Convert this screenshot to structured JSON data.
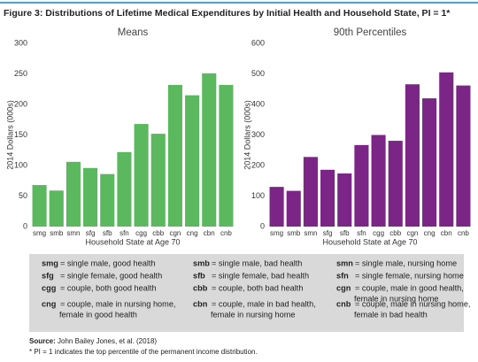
{
  "figure_title": "Figure 3: Distributions of Lifetime Medical Expenditures by Initial Health and Household State, PI = 1*",
  "chart_data": [
    {
      "type": "bar",
      "title": "Means",
      "x_label": "Household State at Age 70",
      "y_label": "2014 Dollars (000s)",
      "categories": [
        "smg",
        "smb",
        "smn",
        "sfg",
        "sfb",
        "sfn",
        "cgg",
        "cbb",
        "cgn",
        "cng",
        "cbn",
        "cnb"
      ],
      "values": [
        68,
        59,
        106,
        96,
        86,
        122,
        168,
        152,
        232,
        215,
        251,
        232
      ],
      "color": "#5cb85f",
      "ylim": [
        0,
        300
      ],
      "yticks": [
        0,
        50,
        100,
        150,
        200,
        250,
        300
      ]
    },
    {
      "type": "bar",
      "title": "90th Percentiles",
      "x_label": "Household State at Age 70",
      "y_label": "2014 Dollars (000s)",
      "categories": [
        "smg",
        "smb",
        "smn",
        "sfg",
        "sfb",
        "sfn",
        "cgg",
        "cbb",
        "cgn",
        "cng",
        "cbn",
        "cnb"
      ],
      "values": [
        130,
        117,
        228,
        186,
        174,
        267,
        300,
        281,
        466,
        420,
        505,
        462
      ],
      "color": "#7b2687",
      "ylim": [
        0,
        600
      ],
      "yticks": [
        0,
        100,
        200,
        300,
        400,
        500,
        600
      ]
    }
  ],
  "abbreviations": [
    {
      "code": "smg",
      "lines": [
        "= single male, good health"
      ]
    },
    {
      "code": "smb",
      "lines": [
        "= single male, bad health"
      ]
    },
    {
      "code": "smn",
      "lines": [
        "= single male, nursing home"
      ]
    },
    {
      "code": "sfg",
      "lines": [
        "= single female, good health"
      ]
    },
    {
      "code": "sfb",
      "lines": [
        "= single female, bad health"
      ]
    },
    {
      "code": "sfn",
      "lines": [
        "= single female, nursing home"
      ]
    },
    {
      "code": "cgg",
      "lines": [
        "= couple, both good health"
      ]
    },
    {
      "code": "cbb",
      "lines": [
        "= couple, both bad health"
      ]
    },
    {
      "code": "cgn",
      "lines": [
        "= couple, male in good health,",
        "female in nursing home"
      ]
    },
    {
      "code": "cng",
      "lines": [
        "= couple, male in nursing home,",
        "female in good health"
      ]
    },
    {
      "code": "cbn",
      "lines": [
        "= couple, male in bad health,",
        "female in nursing home"
      ]
    },
    {
      "code": "cnb",
      "lines": [
        "= couple, male in nursing home,",
        "female in bad health"
      ]
    }
  ],
  "source_label": "Source:",
  "source": "John Bailey Jones, et al. (2018)",
  "note": "* PI = 1 indicates the top percentile of the permanent income distribution."
}
